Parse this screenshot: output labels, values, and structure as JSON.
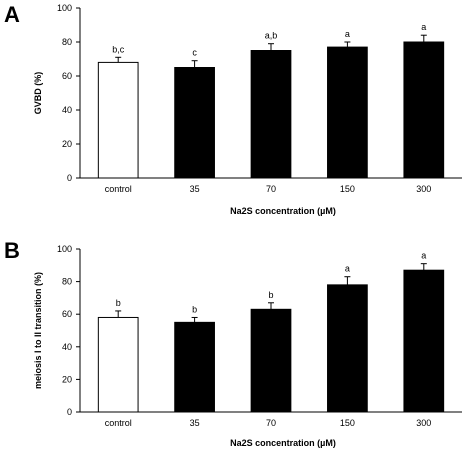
{
  "chart_data": [
    {
      "type": "bar",
      "panel_label": "A",
      "categories": [
        "control",
        "35",
        "70",
        "150",
        "300"
      ],
      "values": [
        68,
        65,
        75,
        77,
        80
      ],
      "errors": [
        3,
        4,
        4,
        3,
        4
      ],
      "significance": [
        "b,c",
        "c",
        "a,b",
        "a",
        "a"
      ],
      "fills": [
        "#ffffff",
        "#000000",
        "#000000",
        "#000000",
        "#000000"
      ],
      "ylabel": "GVBD (%)",
      "xlabel": "Na2S concentration (µM)",
      "ylim": [
        0,
        100
      ],
      "yticks": [
        0,
        20,
        40,
        60,
        80,
        100
      ],
      "grid": false
    },
    {
      "type": "bar",
      "panel_label": "B",
      "categories": [
        "control",
        "35",
        "70",
        "150",
        "300"
      ],
      "values": [
        58,
        55,
        63,
        78,
        87
      ],
      "errors": [
        4,
        3,
        4,
        5,
        4
      ],
      "significance": [
        "b",
        "b",
        "b",
        "a",
        "a"
      ],
      "fills": [
        "#ffffff",
        "#000000",
        "#000000",
        "#000000",
        "#000000"
      ],
      "ylabel": "meiosis I to II transition (%)",
      "xlabel": "Na2S concentration (µM)",
      "ylim": [
        0,
        100
      ],
      "yticks": [
        0,
        20,
        40,
        60,
        80,
        100
      ],
      "grid": false
    }
  ]
}
